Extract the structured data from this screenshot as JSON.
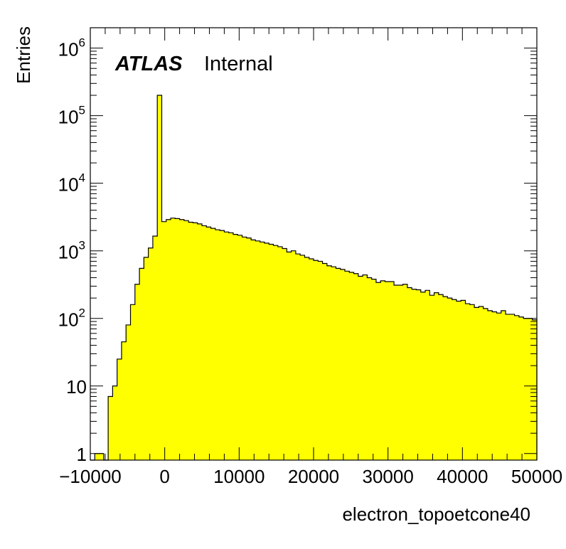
{
  "chart_data": {
    "type": "histogram",
    "title": "",
    "xlabel": "electron_topoetcone40",
    "ylabel": "Entries",
    "y_scale": "log",
    "xlim": [
      -10000,
      50000
    ],
    "ylim": [
      0.8,
      2000000
    ],
    "x_ticks": [
      {
        "value": -10000,
        "label": "−10000"
      },
      {
        "value": 0,
        "label": "0"
      },
      {
        "value": 10000,
        "label": "10000"
      },
      {
        "value": 20000,
        "label": "20000"
      },
      {
        "value": 30000,
        "label": "30000"
      },
      {
        "value": 40000,
        "label": "40000"
      },
      {
        "value": 50000,
        "label": "50000"
      }
    ],
    "y_ticks": [
      {
        "value": 1,
        "base": "1",
        "exp": ""
      },
      {
        "value": 10,
        "base": "10",
        "exp": ""
      },
      {
        "value": 100,
        "base": "10",
        "exp": "2"
      },
      {
        "value": 1000,
        "base": "10",
        "exp": "3"
      },
      {
        "value": 10000,
        "base": "10",
        "exp": "4"
      },
      {
        "value": 100000,
        "base": "10",
        "exp": "5"
      },
      {
        "value": 1000000,
        "base": "10",
        "exp": "6"
      }
    ],
    "grid": false,
    "fill_color": "#ffff00",
    "line_color": "#000000",
    "bin_width": 600,
    "bin_start": -10000,
    "values": [
      0,
      1,
      1,
      0,
      7,
      10,
      25,
      45,
      80,
      160,
      320,
      550,
      800,
      1100,
      1650,
      200000,
      2700,
      2900,
      3050,
      3000,
      2900,
      2800,
      2650,
      2600,
      2500,
      2350,
      2250,
      2150,
      2050,
      2000,
      1900,
      1850,
      1750,
      1700,
      1600,
      1550,
      1450,
      1400,
      1350,
      1300,
      1250,
      1200,
      1150,
      1080,
      960,
      1000,
      900,
      860,
      800,
      760,
      720,
      700,
      650,
      600,
      580,
      550,
      530,
      500,
      480,
      460,
      420,
      440,
      400,
      380,
      340,
      360,
      350,
      350,
      310,
      310,
      320,
      285,
      270,
      265,
      245,
      260,
      220,
      240,
      225,
      210,
      200,
      190,
      180,
      185,
      165,
      160,
      145,
      150,
      140,
      130,
      125,
      120,
      130,
      115,
      115,
      110,
      105,
      100,
      100,
      95
    ],
    "annotations": {
      "experiment": "ATLAS",
      "status": "Internal"
    }
  }
}
